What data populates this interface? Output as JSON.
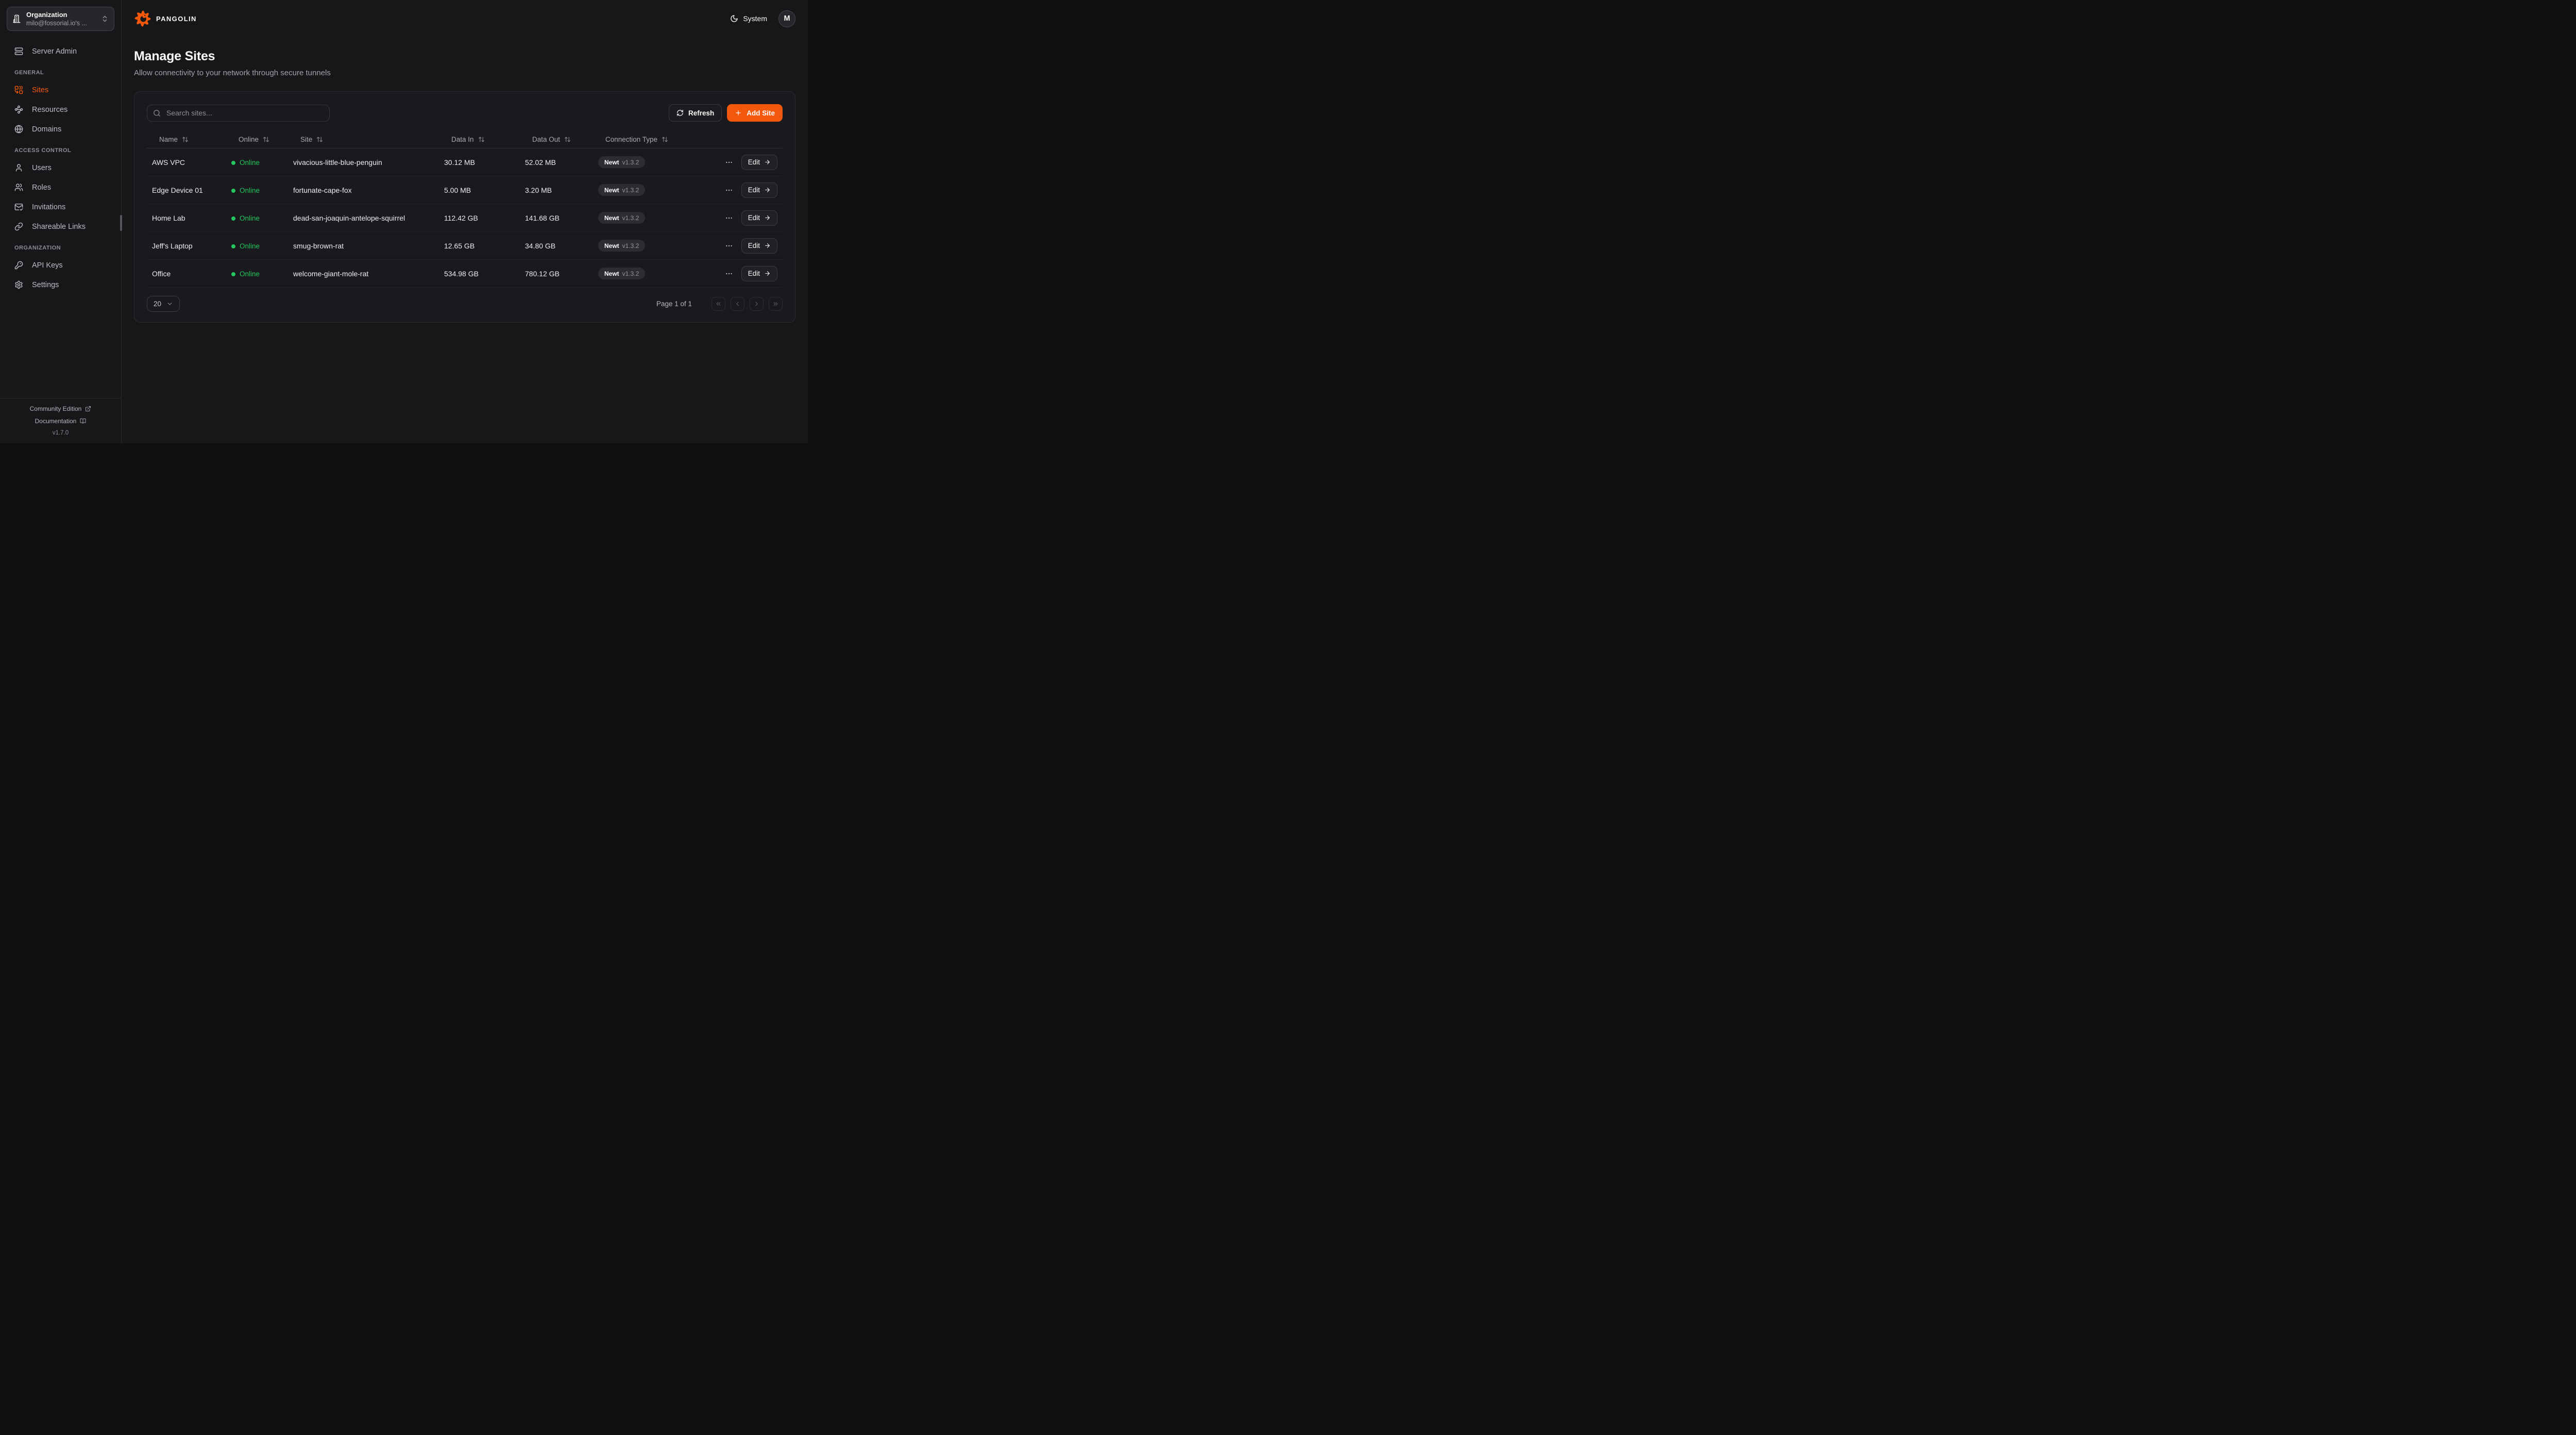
{
  "colors": {
    "accent": "#F1580C",
    "online_green": "#22C55E",
    "page_bg": "#17171A"
  },
  "org_selector": {
    "label": "Organization",
    "value": "milo@fossorial.io's ...",
    "icon": "building",
    "trailing_icon": "chevrons-up-down"
  },
  "sidebar": {
    "top_items": [
      {
        "label": "Server Admin",
        "icon": "server"
      }
    ],
    "sections": [
      {
        "heading": "GENERAL",
        "items": [
          {
            "label": "Sites",
            "icon": "sites",
            "active": true
          },
          {
            "label": "Resources",
            "icon": "waypoints",
            "active": false
          },
          {
            "label": "Domains",
            "icon": "globe",
            "active": false
          }
        ]
      },
      {
        "heading": "ACCESS CONTROL",
        "items": [
          {
            "label": "Users",
            "icon": "user",
            "active": false
          },
          {
            "label": "Roles",
            "icon": "users",
            "active": false
          },
          {
            "label": "Invitations",
            "icon": "mail-check",
            "active": false
          },
          {
            "label": "Shareable Links",
            "icon": "link",
            "active": false
          }
        ]
      },
      {
        "heading": "ORGANIZATION",
        "items": [
          {
            "label": "API Keys",
            "icon": "key",
            "active": false
          },
          {
            "label": "Settings",
            "icon": "settings",
            "active": false
          }
        ]
      }
    ],
    "footer": {
      "links": [
        {
          "label": "Community Edition",
          "icon": "external-link"
        },
        {
          "label": "Documentation",
          "icon": "book-open"
        }
      ],
      "version": "v1.7.0"
    }
  },
  "header": {
    "brand": "PANGOLIN",
    "theme": {
      "label": "System",
      "icon": "moon"
    },
    "avatar_initial": "M"
  },
  "page": {
    "title": "Manage Sites",
    "subtitle": "Allow connectivity to your network through secure tunnels"
  },
  "toolbar": {
    "search_placeholder": "Search sites...",
    "refresh_label": "Refresh",
    "add_site_label": "Add Site"
  },
  "table": {
    "columns": [
      {
        "label": "Name"
      },
      {
        "label": "Online"
      },
      {
        "label": "Site"
      },
      {
        "label": "Data In"
      },
      {
        "label": "Data Out"
      },
      {
        "label": "Connection Type"
      }
    ],
    "edit_label": "Edit",
    "rows": [
      {
        "name": "AWS VPC",
        "status": "Online",
        "site": "vivacious-little-blue-penguin",
        "data_in": "30.12 MB",
        "data_out": "52.02 MB",
        "connection_type": "Newt",
        "connection_version": "v1.3.2"
      },
      {
        "name": "Edge Device 01",
        "status": "Online",
        "site": "fortunate-cape-fox",
        "data_in": "5.00 MB",
        "data_out": "3.20 MB",
        "connection_type": "Newt",
        "connection_version": "v1.3.2"
      },
      {
        "name": "Home Lab",
        "status": "Online",
        "site": "dead-san-joaquin-antelope-squirrel",
        "data_in": "112.42 GB",
        "data_out": "141.68 GB",
        "connection_type": "Newt",
        "connection_version": "v1.3.2"
      },
      {
        "name": "Jeff's Laptop",
        "status": "Online",
        "site": "smug-brown-rat",
        "data_in": "12.65 GB",
        "data_out": "34.80 GB",
        "connection_type": "Newt",
        "connection_version": "v1.3.2"
      },
      {
        "name": "Office",
        "status": "Online",
        "site": "welcome-giant-mole-rat",
        "data_in": "534.98 GB",
        "data_out": "780.12 GB",
        "connection_type": "Newt",
        "connection_version": "v1.3.2"
      }
    ]
  },
  "pagination": {
    "page_size": "20",
    "page_info": "Page 1 of 1",
    "buttons": [
      "chevrons-left",
      "chevron-left",
      "chevron-right",
      "chevrons-right"
    ]
  }
}
